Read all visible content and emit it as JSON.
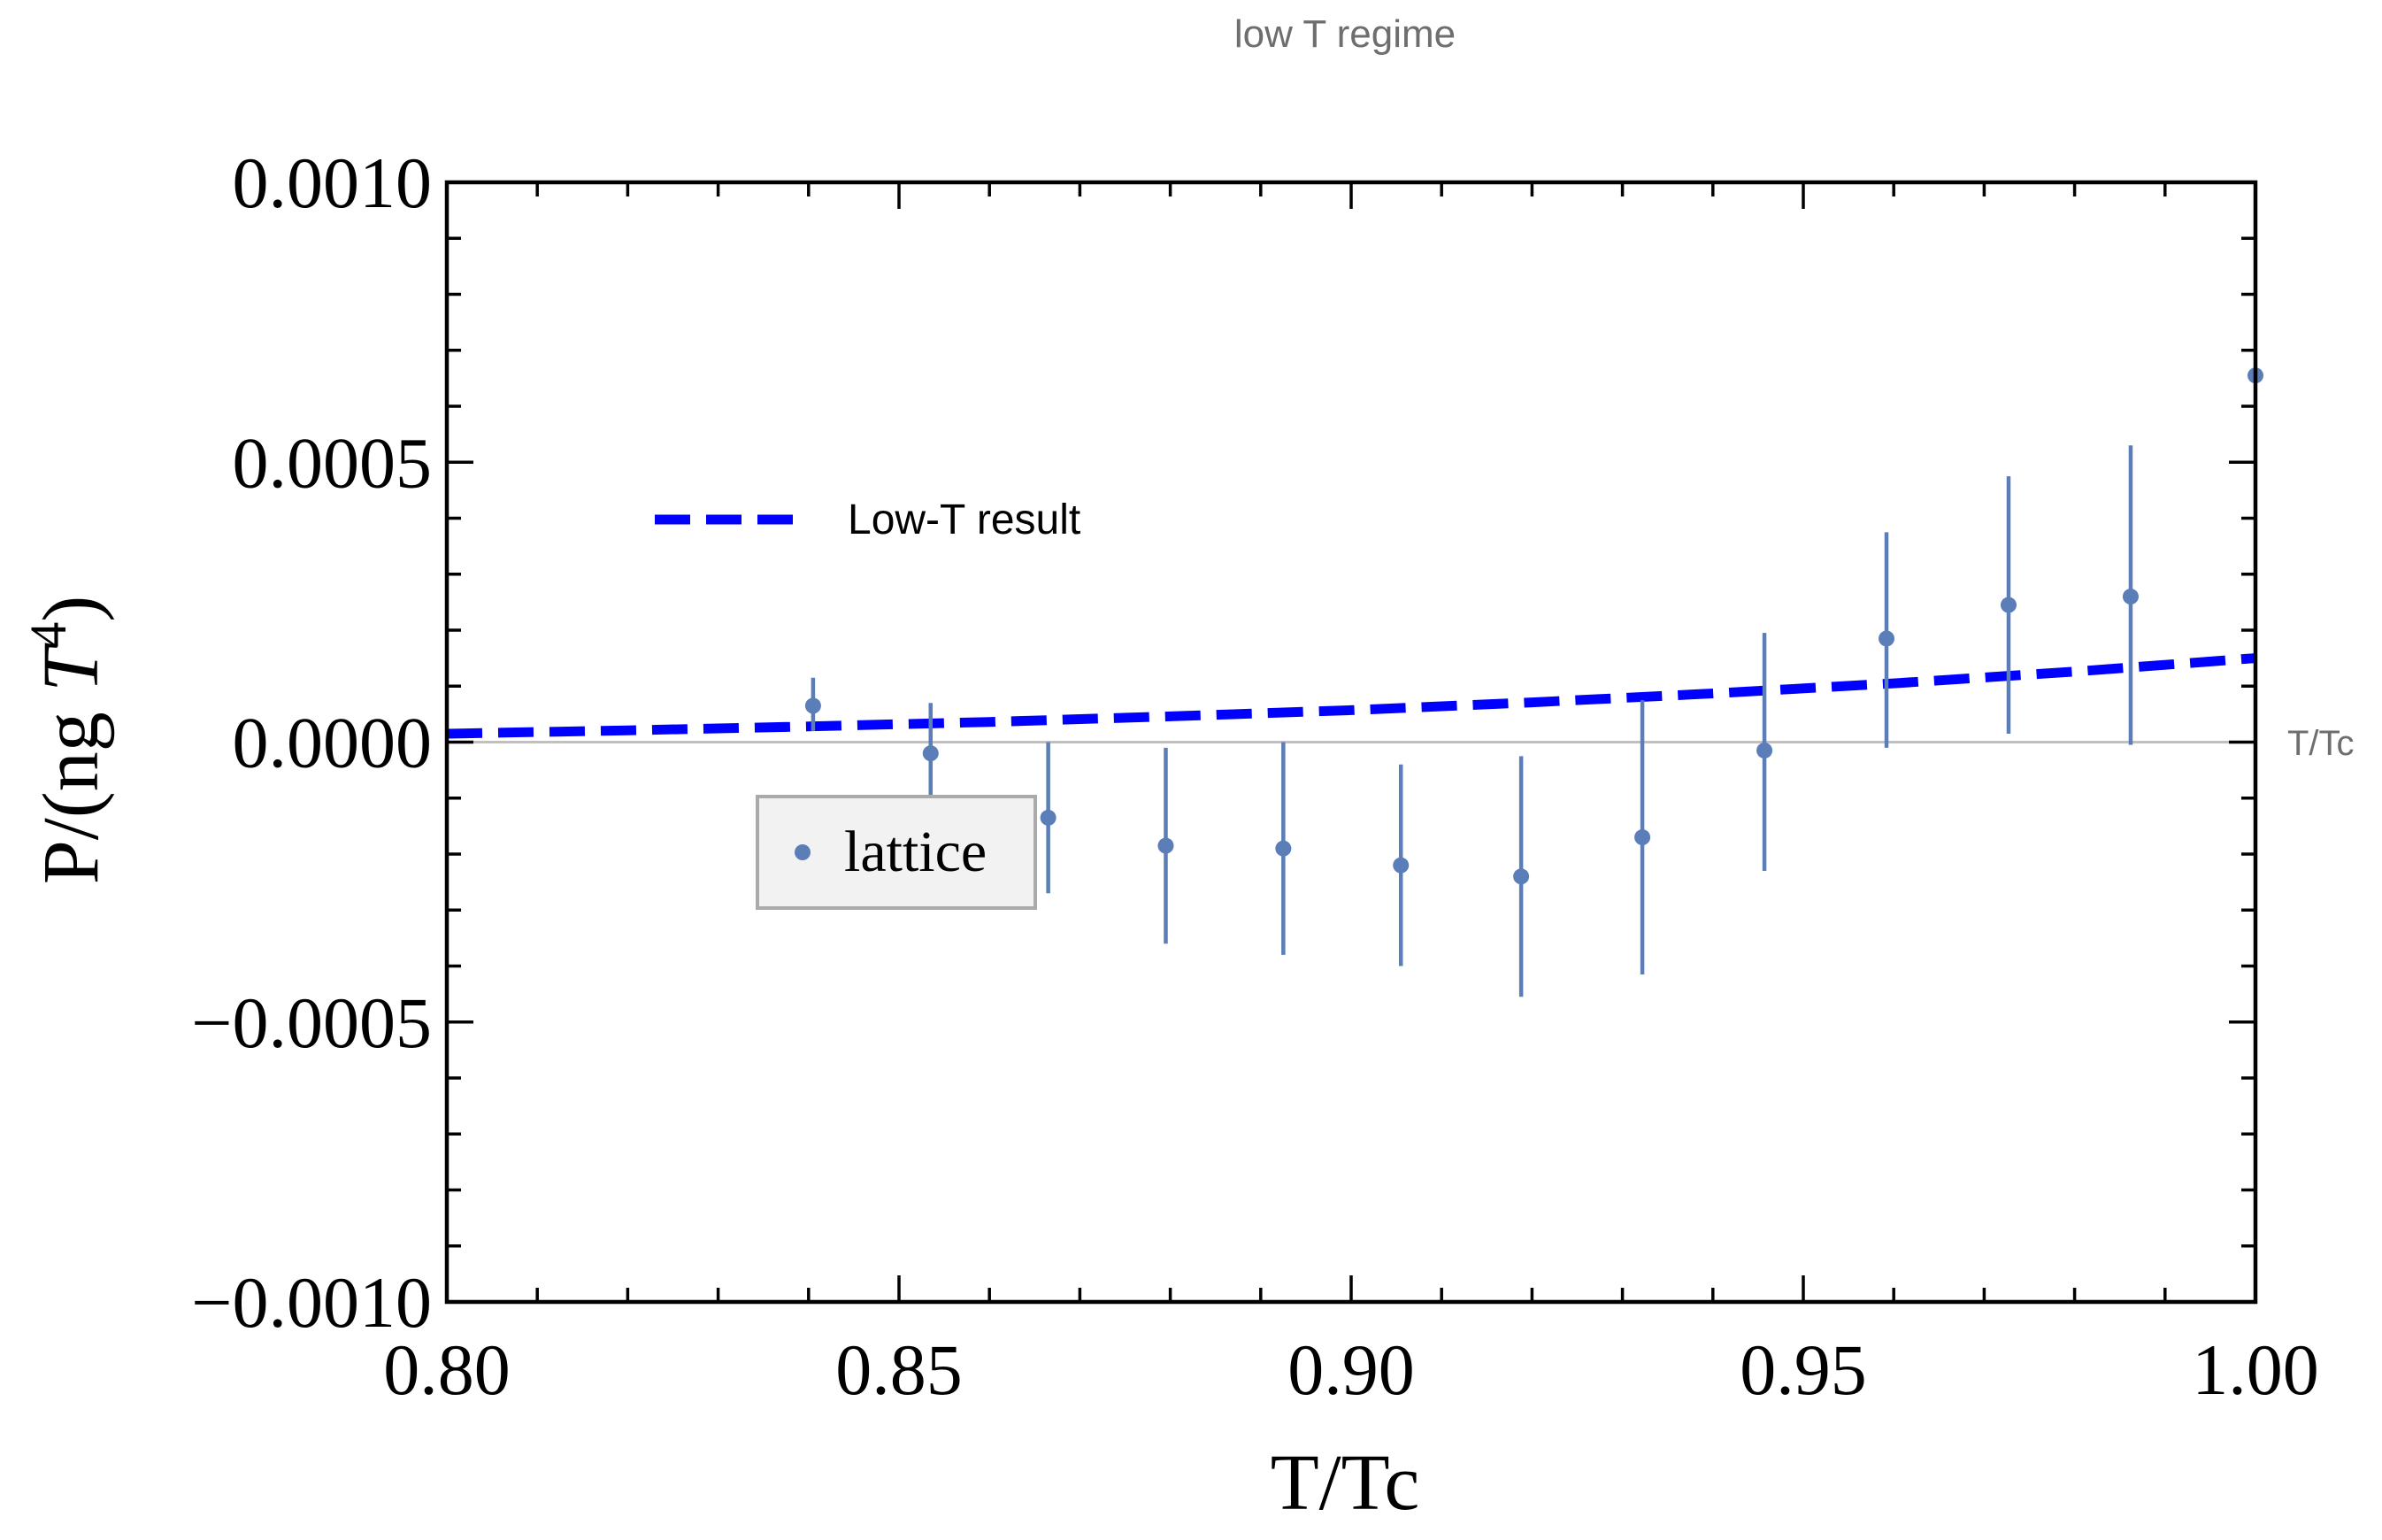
{
  "chart_data": {
    "type": "scatter",
    "title": "low T regime",
    "xlabel": "T/Tc",
    "ylabel": "P/(ng T^4)",
    "ylabel_parts": {
      "prefix": "P/(ng ",
      "var": "T",
      "exp": "4",
      "suffix": ")"
    },
    "axis_annotation": "T/Tc",
    "xlim": [
      0.8,
      1.0
    ],
    "ylim": [
      -0.001,
      0.001
    ],
    "x_ticks": [
      0.8,
      0.85,
      0.9,
      0.95,
      1.0
    ],
    "x_tick_labels": [
      "0.80",
      "0.85",
      "0.90",
      "0.95",
      "1.00"
    ],
    "y_ticks": [
      -0.001,
      -0.0005,
      0.0,
      0.0005,
      0.001
    ],
    "y_tick_labels": [
      "−0.0010",
      "−0.0005",
      "0.0000",
      "0.0005",
      "0.0010"
    ],
    "series": [
      {
        "name": "lattice",
        "kind": "errorbar",
        "color": "#5b7db8",
        "x": [
          0.8405,
          0.8535,
          0.8665,
          0.8795,
          0.8925,
          0.9055,
          0.9188,
          0.9322,
          0.9457,
          0.9592,
          0.9727,
          0.9862,
          1.0
        ],
        "y": [
          6.5e-05,
          -2e-05,
          -0.000135,
          -0.000185,
          -0.00019,
          -0.00022,
          -0.00024,
          -0.00017,
          -1.5e-05,
          0.000185,
          0.000245,
          0.00026,
          0.000655
        ],
        "y_low": [
          2e-05,
          -0.00011,
          -0.00027,
          -0.00036,
          -0.00038,
          -0.0004,
          -0.000455,
          -0.000415,
          -0.00023,
          -1e-05,
          1.5e-05,
          -5e-06,
          null
        ],
        "y_high": [
          0.000115,
          7e-05,
          0.0,
          -1e-05,
          0.0,
          -4e-05,
          -2.5e-05,
          7.5e-05,
          0.000195,
          0.000375,
          0.000475,
          0.00053,
          null
        ]
      },
      {
        "name": "Low-T result",
        "kind": "line",
        "style": "dashed",
        "color": "#0000ff",
        "x": [
          0.8,
          0.82,
          0.84,
          0.86,
          0.88,
          0.9,
          0.92,
          0.94,
          0.96,
          0.98,
          1.0
        ],
        "y": [
          1.5e-05,
          2.1e-05,
          2.8e-05,
          3.6e-05,
          4.6e-05,
          5.7e-05,
          7.1e-05,
          8.7e-05,
          0.000105,
          0.000126,
          0.00015
        ]
      }
    ],
    "legends": [
      {
        "series": "Low-T result",
        "placement": "upper-left",
        "boxed": false
      },
      {
        "series": "lattice",
        "placement": "middle-left",
        "boxed": true
      }
    ]
  }
}
